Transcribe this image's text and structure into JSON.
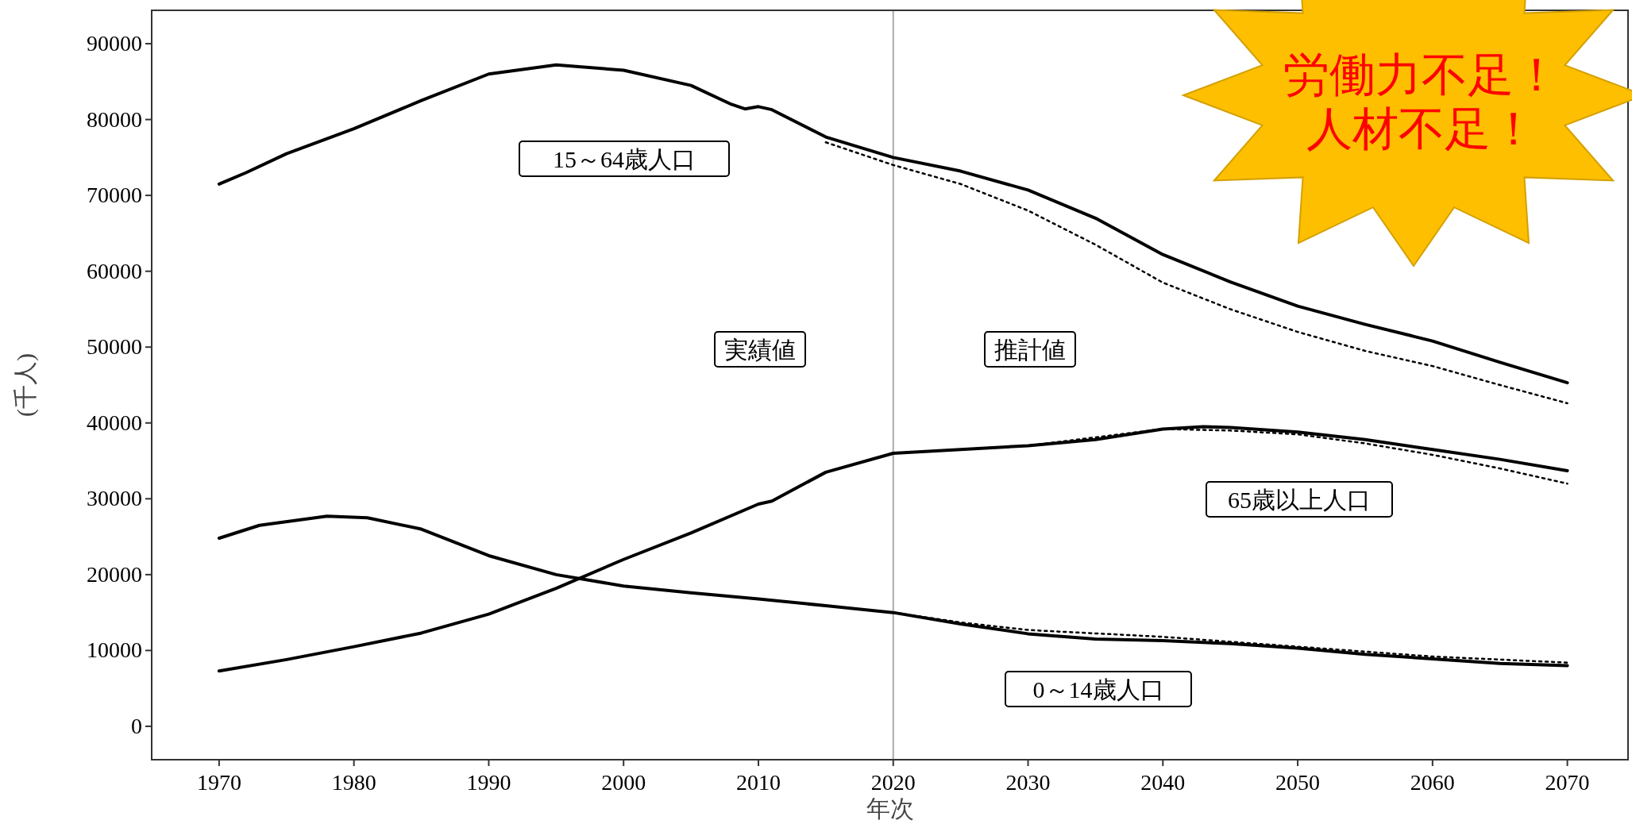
{
  "chart_data": {
    "type": "line",
    "xlabel": "年次",
    "ylabel": "(千人)",
    "xlim": [
      1965,
      2074.5
    ],
    "ylim": [
      -4400,
      94400
    ],
    "xticks": [
      1970,
      1980,
      1990,
      2000,
      2010,
      2020,
      2030,
      2040,
      2050,
      2060,
      2070
    ],
    "yticks": [
      0,
      10000,
      20000,
      30000,
      40000,
      50000,
      60000,
      70000,
      80000,
      90000
    ],
    "grid": false,
    "line_style": "solid",
    "series": [
      {
        "x": [
          1970,
          1972,
          1975,
          1980,
          1985,
          1990,
          1995,
          2000,
          2005,
          2008,
          2009,
          2010,
          2011,
          2015,
          2020,
          2025,
          2030,
          2035,
          2040,
          2045,
          2050,
          2055,
          2060,
          2065,
          2070
        ],
        "values": [
          71500,
          73000,
          75500,
          78800,
          82500,
          86000,
          87200,
          86500,
          84500,
          82000,
          81400,
          81700,
          81300,
          77700,
          75000,
          73200,
          70700,
          67000,
          62200,
          58600,
          55400,
          53000,
          50800,
          48000,
          45300
        ],
        "color": "#000000"
      },
      {
        "x": [
          2015,
          2020,
          2025,
          2030,
          2035,
          2040,
          2045,
          2050,
          2055,
          2060,
          2065,
          2070
        ],
        "values": [
          77000,
          74000,
          71500,
          68000,
          63500,
          58500,
          55000,
          52000,
          49500,
          47500,
          45000,
          42600
        ],
        "color": "#000000",
        "line_style": "dotted"
      },
      {
        "x": [
          1970,
          1975,
          1980,
          1985,
          1990,
          1995,
          2000,
          2005,
          2010,
          2011,
          2015,
          2020,
          2025,
          2030,
          2035,
          2040,
          2043,
          2045,
          2050,
          2055,
          2060,
          2065,
          2070
        ],
        "values": [
          7300,
          8800,
          10500,
          12300,
          14800,
          18200,
          22000,
          25500,
          29300,
          29700,
          33500,
          36000,
          36500,
          37000,
          37800,
          39200,
          39500,
          39400,
          38800,
          37800,
          36500,
          35200,
          33700
        ],
        "color": "#000000"
      },
      {
        "x": [
          2020,
          2030,
          2040,
          2045,
          2050,
          2055,
          2060,
          2065,
          2070
        ],
        "values": [
          36000,
          37000,
          39200,
          39000,
          38500,
          37300,
          35800,
          34000,
          32000
        ],
        "color": "#000000",
        "line_style": "dotted"
      },
      {
        "x": [
          1970,
          1973,
          1978,
          1981,
          1985,
          1990,
          1995,
          2000,
          2005,
          2010,
          2015,
          2020,
          2025,
          2030,
          2035,
          2040,
          2045,
          2050,
          2055,
          2060,
          2065,
          2070
        ],
        "values": [
          24800,
          26500,
          27700,
          27500,
          26000,
          22500,
          20000,
          18500,
          17600,
          16800,
          15900,
          15000,
          13500,
          12200,
          11500,
          11300,
          10900,
          10300,
          9500,
          8900,
          8300,
          8000
        ],
        "color": "#000000"
      },
      {
        "x": [
          2020,
          2025,
          2030,
          2040,
          2050,
          2060,
          2070
        ],
        "values": [
          15000,
          13700,
          12700,
          11800,
          10500,
          9200,
          8400
        ],
        "color": "#000000",
        "line_style": "dotted"
      }
    ],
    "ref_lines": [
      {
        "axis": "x",
        "value": 2020,
        "color": "#aaaaaa"
      }
    ],
    "annotations": [
      "15～64歳人口",
      "実績値",
      "推計値",
      "65歳以上人口",
      "0～14歳人口",
      "労働力不足！",
      "人材不足！"
    ]
  }
}
